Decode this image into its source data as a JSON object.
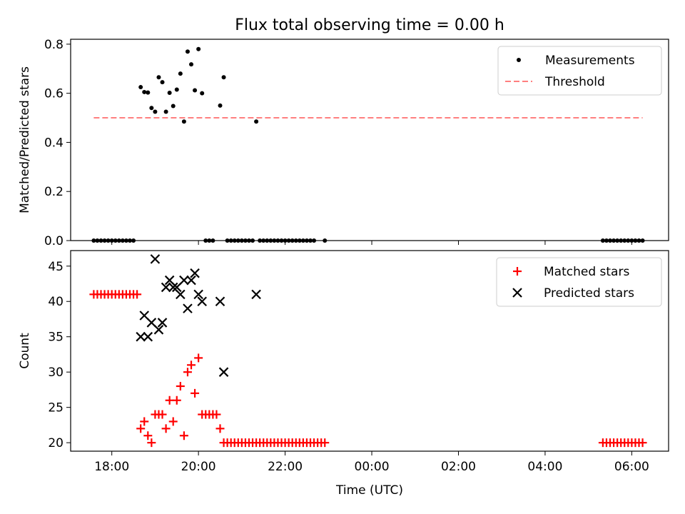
{
  "title": "Flux total observing time = 0.00 h",
  "colors": {
    "measurements": "#000000",
    "threshold": "#ff7f7f",
    "matched": "#ff0000",
    "predicted": "#000000"
  },
  "chart_data": [
    {
      "type": "scatter",
      "ylabel": "Matched/Predicted stars",
      "xlabel": "",
      "xlim": [
        "17:03",
        "06:51"
      ],
      "ylim": [
        0,
        0.82
      ],
      "yticks": [
        0.0,
        0.2,
        0.4,
        0.6,
        0.8
      ],
      "ytick_labels": [
        "0.0",
        "0.2",
        "0.4",
        "0.6",
        "0.8"
      ],
      "xticks": [
        "18:00",
        "20:00",
        "22:00",
        "00:00",
        "02:00",
        "04:00",
        "06:00"
      ],
      "xtick_labels": [
        "",
        "",
        "",
        "",
        "",
        "",
        ""
      ],
      "legend_position": "top-right",
      "legend": [
        "Measurements",
        "Threshold"
      ],
      "series": [
        {
          "name": "Measurements",
          "marker": "dot",
          "points": [
            [
              "18:40",
              0.625
            ],
            [
              "18:45",
              0.605
            ],
            [
              "18:50",
              0.603
            ],
            [
              "18:55",
              0.54
            ],
            [
              "19:00",
              0.525
            ],
            [
              "19:05",
              0.665
            ],
            [
              "19:10",
              0.645
            ],
            [
              "19:15",
              0.525
            ],
            [
              "19:20",
              0.602
            ],
            [
              "19:25",
              0.548
            ],
            [
              "19:30",
              0.615
            ],
            [
              "19:35",
              0.68
            ],
            [
              "19:40",
              0.485
            ],
            [
              "19:45",
              0.77
            ],
            [
              "19:50",
              0.718
            ],
            [
              "19:55",
              0.612
            ],
            [
              "20:00",
              0.78
            ],
            [
              "20:05",
              0.6
            ],
            [
              "20:30",
              0.55
            ],
            [
              "20:35",
              0.665
            ],
            [
              "21:20",
              0.485
            ],
            [
              "17:35",
              0
            ],
            [
              "17:40",
              0
            ],
            [
              "17:45",
              0
            ],
            [
              "17:50",
              0
            ],
            [
              "17:55",
              0
            ],
            [
              "18:00",
              0
            ],
            [
              "18:05",
              0
            ],
            [
              "18:10",
              0
            ],
            [
              "18:15",
              0
            ],
            [
              "18:20",
              0
            ],
            [
              "18:25",
              0
            ],
            [
              "18:30",
              0
            ],
            [
              "20:10",
              0
            ],
            [
              "20:15",
              0
            ],
            [
              "20:20",
              0
            ],
            [
              "20:40",
              0
            ],
            [
              "20:45",
              0
            ],
            [
              "20:50",
              0
            ],
            [
              "20:55",
              0
            ],
            [
              "21:00",
              0
            ],
            [
              "21:05",
              0
            ],
            [
              "21:10",
              0
            ],
            [
              "21:15",
              0
            ],
            [
              "21:25",
              0
            ],
            [
              "21:30",
              0
            ],
            [
              "21:35",
              0
            ],
            [
              "21:40",
              0
            ],
            [
              "21:45",
              0
            ],
            [
              "21:50",
              0
            ],
            [
              "21:55",
              0
            ],
            [
              "22:00",
              0
            ],
            [
              "22:05",
              0
            ],
            [
              "22:10",
              0
            ],
            [
              "22:15",
              0
            ],
            [
              "22:20",
              0
            ],
            [
              "22:25",
              0
            ],
            [
              "22:30",
              0
            ],
            [
              "22:35",
              0
            ],
            [
              "22:40",
              0
            ],
            [
              "22:55",
              0
            ],
            [
              "05:20",
              0
            ],
            [
              "05:25",
              0
            ],
            [
              "05:30",
              0
            ],
            [
              "05:35",
              0
            ],
            [
              "05:40",
              0
            ],
            [
              "05:45",
              0
            ],
            [
              "05:50",
              0
            ],
            [
              "05:55",
              0
            ],
            [
              "06:00",
              0
            ],
            [
              "06:05",
              0
            ],
            [
              "06:10",
              0
            ],
            [
              "06:15",
              0
            ]
          ]
        },
        {
          "name": "Threshold",
          "style": "dashed",
          "points": [
            [
              "17:35",
              0.5
            ],
            [
              "06:15",
              0.5
            ]
          ]
        }
      ]
    },
    {
      "type": "scatter",
      "ylabel": "Count",
      "xlabel": "Time (UTC)",
      "xlim": [
        "17:03",
        "06:51"
      ],
      "ylim": [
        18.8,
        47.2
      ],
      "yticks": [
        20,
        25,
        30,
        35,
        40,
        45
      ],
      "ytick_labels": [
        "20",
        "25",
        "30",
        "35",
        "40",
        "45"
      ],
      "xticks": [
        "18:00",
        "20:00",
        "22:00",
        "00:00",
        "02:00",
        "04:00",
        "06:00"
      ],
      "xtick_labels": [
        "18:00",
        "20:00",
        "22:00",
        "00:00",
        "02:00",
        "04:00",
        "06:00"
      ],
      "legend_position": "top-right",
      "legend": [
        "Matched stars",
        "Predicted stars"
      ],
      "series": [
        {
          "name": "Matched stars",
          "marker": "plus",
          "points": [
            [
              "17:35",
              41
            ],
            [
              "17:40",
              41
            ],
            [
              "17:45",
              41
            ],
            [
              "17:50",
              41
            ],
            [
              "17:55",
              41
            ],
            [
              "18:00",
              41
            ],
            [
              "18:05",
              41
            ],
            [
              "18:10",
              41
            ],
            [
              "18:15",
              41
            ],
            [
              "18:20",
              41
            ],
            [
              "18:25",
              41
            ],
            [
              "18:30",
              41
            ],
            [
              "18:35",
              41
            ],
            [
              "18:40",
              22
            ],
            [
              "18:45",
              23
            ],
            [
              "18:50",
              21
            ],
            [
              "18:55",
              20
            ],
            [
              "19:00",
              24
            ],
            [
              "19:05",
              24
            ],
            [
              "19:10",
              24
            ],
            [
              "19:15",
              22
            ],
            [
              "19:20",
              26
            ],
            [
              "19:25",
              23
            ],
            [
              "19:30",
              26
            ],
            [
              "19:35",
              28
            ],
            [
              "19:40",
              21
            ],
            [
              "19:45",
              30
            ],
            [
              "19:50",
              31
            ],
            [
              "19:55",
              27
            ],
            [
              "20:00",
              32
            ],
            [
              "20:05",
              24
            ],
            [
              "20:10",
              24
            ],
            [
              "20:15",
              24
            ],
            [
              "20:20",
              24
            ],
            [
              "20:25",
              24
            ],
            [
              "20:30",
              22
            ],
            [
              "20:35",
              20
            ],
            [
              "20:40",
              20
            ],
            [
              "20:45",
              20
            ],
            [
              "20:50",
              20
            ],
            [
              "20:55",
              20
            ],
            [
              "21:00",
              20
            ],
            [
              "21:05",
              20
            ],
            [
              "21:10",
              20
            ],
            [
              "21:15",
              20
            ],
            [
              "21:20",
              20
            ],
            [
              "21:25",
              20
            ],
            [
              "21:30",
              20
            ],
            [
              "21:35",
              20
            ],
            [
              "21:40",
              20
            ],
            [
              "21:45",
              20
            ],
            [
              "21:50",
              20
            ],
            [
              "21:55",
              20
            ],
            [
              "22:00",
              20
            ],
            [
              "22:05",
              20
            ],
            [
              "22:10",
              20
            ],
            [
              "22:15",
              20
            ],
            [
              "22:20",
              20
            ],
            [
              "22:25",
              20
            ],
            [
              "22:30",
              20
            ],
            [
              "22:35",
              20
            ],
            [
              "22:40",
              20
            ],
            [
              "22:45",
              20
            ],
            [
              "22:50",
              20
            ],
            [
              "22:55",
              20
            ],
            [
              "05:20",
              20
            ],
            [
              "05:25",
              20
            ],
            [
              "05:30",
              20
            ],
            [
              "05:35",
              20
            ],
            [
              "05:40",
              20
            ],
            [
              "05:45",
              20
            ],
            [
              "05:50",
              20
            ],
            [
              "05:55",
              20
            ],
            [
              "06:00",
              20
            ],
            [
              "06:05",
              20
            ],
            [
              "06:10",
              20
            ],
            [
              "06:15",
              20
            ]
          ]
        },
        {
          "name": "Predicted stars",
          "marker": "x",
          "points": [
            [
              "18:40",
              35
            ],
            [
              "18:45",
              38
            ],
            [
              "18:50",
              35
            ],
            [
              "18:55",
              37
            ],
            [
              "19:00",
              46
            ],
            [
              "19:05",
              36
            ],
            [
              "19:10",
              37
            ],
            [
              "19:15",
              42
            ],
            [
              "19:20",
              43
            ],
            [
              "19:25",
              42
            ],
            [
              "19:30",
              42
            ],
            [
              "19:35",
              41
            ],
            [
              "19:40",
              43
            ],
            [
              "19:45",
              39
            ],
            [
              "19:50",
              43
            ],
            [
              "19:55",
              44
            ],
            [
              "20:00",
              41
            ],
            [
              "20:05",
              40
            ],
            [
              "20:30",
              40
            ],
            [
              "20:35",
              30
            ],
            [
              "21:20",
              41
            ]
          ]
        }
      ]
    }
  ]
}
